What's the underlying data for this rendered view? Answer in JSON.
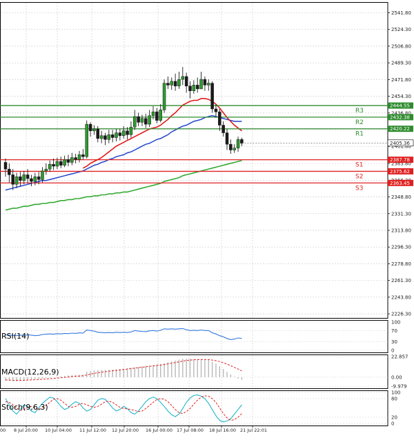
{
  "chart_data": [
    {
      "type": "candlestick",
      "title": "",
      "y_ticks": [
        "2541.80",
        "2524.30",
        "2506.80",
        "2489.30",
        "2471.80",
        "2454.30",
        "2436.80",
        "2419.30",
        "2401.80",
        "2383.80",
        "2366.30",
        "2348.80",
        "2331.30",
        "2313.80",
        "2296.30",
        "2278.80",
        "2261.30",
        "2243.80",
        "2226.30"
      ],
      "x_ticks": [
        "8 Jul 20:00",
        "10 Jul 04:00",
        "11 Jul 12:00",
        "12 Jul 20:00",
        "16 Jul 00:00",
        "17 Jul 08:00",
        "18 Jul 16:00",
        "21 Jul 22:01"
      ],
      "x_tick_first_partial": "00",
      "ylim": [
        2222,
        2553
      ],
      "grid": true,
      "candles": [
        [
          2385,
          2378,
          2389,
          2370
        ],
        [
          2378,
          2372,
          2384,
          2364
        ],
        [
          2372,
          2362,
          2378,
          2356
        ],
        [
          2362,
          2370,
          2374,
          2358
        ],
        [
          2370,
          2366,
          2375,
          2360
        ],
        [
          2366,
          2372,
          2376,
          2362
        ],
        [
          2372,
          2368,
          2378,
          2363
        ],
        [
          2368,
          2365,
          2372,
          2360
        ],
        [
          2365,
          2370,
          2374,
          2361
        ],
        [
          2370,
          2367,
          2375,
          2362
        ],
        [
          2367,
          2376,
          2380,
          2364
        ],
        [
          2376,
          2378,
          2384,
          2372
        ],
        [
          2378,
          2383,
          2387,
          2375
        ],
        [
          2383,
          2381,
          2389,
          2377
        ],
        [
          2381,
          2386,
          2390,
          2378
        ],
        [
          2386,
          2382,
          2391,
          2379
        ],
        [
          2382,
          2388,
          2392,
          2380
        ],
        [
          2388,
          2385,
          2393,
          2381
        ],
        [
          2385,
          2390,
          2395,
          2382
        ],
        [
          2390,
          2388,
          2394,
          2384
        ],
        [
          2388,
          2393,
          2397,
          2385
        ],
        [
          2393,
          2391,
          2399,
          2388
        ],
        [
          2391,
          2425,
          2429,
          2389
        ],
        [
          2425,
          2418,
          2427,
          2412
        ],
        [
          2418,
          2420,
          2424,
          2414
        ],
        [
          2420,
          2410,
          2423,
          2406
        ],
        [
          2410,
          2413,
          2418,
          2405
        ],
        [
          2413,
          2409,
          2416,
          2403
        ],
        [
          2409,
          2414,
          2419,
          2405
        ],
        [
          2414,
          2411,
          2419,
          2406
        ],
        [
          2411,
          2416,
          2420,
          2407
        ],
        [
          2416,
          2413,
          2420,
          2408
        ],
        [
          2413,
          2418,
          2423,
          2410
        ],
        [
          2418,
          2414,
          2422,
          2409
        ],
        [
          2414,
          2422,
          2428,
          2411
        ],
        [
          2422,
          2433,
          2440,
          2419
        ],
        [
          2433,
          2427,
          2437,
          2423
        ],
        [
          2427,
          2431,
          2435,
          2423
        ],
        [
          2431,
          2425,
          2436,
          2421
        ],
        [
          2425,
          2434,
          2440,
          2422
        ],
        [
          2434,
          2438,
          2444,
          2430
        ],
        [
          2438,
          2429,
          2442,
          2426
        ],
        [
          2429,
          2440,
          2446,
          2427
        ],
        [
          2440,
          2468,
          2472,
          2437
        ],
        [
          2468,
          2466,
          2475,
          2462
        ],
        [
          2466,
          2470,
          2474,
          2461
        ],
        [
          2470,
          2465,
          2478,
          2460
        ],
        [
          2465,
          2472,
          2480,
          2462
        ],
        [
          2472,
          2475,
          2485,
          2466
        ],
        [
          2475,
          2465,
          2479,
          2458
        ],
        [
          2465,
          2460,
          2470,
          2452
        ],
        [
          2460,
          2466,
          2471,
          2457
        ],
        [
          2466,
          2462,
          2474,
          2458
        ],
        [
          2462,
          2472,
          2480,
          2463
        ],
        [
          2472,
          2466,
          2475,
          2460
        ],
        [
          2466,
          2468,
          2472,
          2460
        ],
        [
          2468,
          2441,
          2470,
          2437
        ],
        [
          2441,
          2438,
          2446,
          2432
        ],
        [
          2438,
          2424,
          2441,
          2418
        ],
        [
          2424,
          2416,
          2428,
          2412
        ],
        [
          2416,
          2404,
          2420,
          2398
        ],
        [
          2404,
          2398,
          2409,
          2394
        ],
        [
          2398,
          2400,
          2404,
          2395
        ],
        [
          2400,
          2409,
          2412,
          2396
        ],
        [
          2409,
          2405,
          2411,
          2402
        ]
      ],
      "last_price": "2405.36",
      "levels": [
        {
          "name": "R3",
          "value": 2444.55,
          "label": "2444.55",
          "color": "#2e8b2e"
        },
        {
          "name": "R2",
          "value": 2432.38,
          "label": "2432.38",
          "color": "#2e8b2e"
        },
        {
          "name": "R1",
          "value": 2420.22,
          "label": "2420.22",
          "color": "#2e8b2e"
        },
        {
          "name": "S1",
          "value": 2387.78,
          "label": "2387.78",
          "color": "#e02020"
        },
        {
          "name": "S2",
          "value": 2375.62,
          "label": "2375.62",
          "color": "#e02020"
        },
        {
          "name": "S3",
          "value": 2363.45,
          "label": "2363.45",
          "color": "#e02020"
        }
      ],
      "ma_red": [
        null,
        null,
        null,
        null,
        null,
        null,
        null,
        null,
        null,
        null,
        null,
        null,
        null,
        null,
        null,
        null,
        null,
        null,
        null,
        null,
        null,
        2379,
        2381,
        2384,
        2386,
        2388,
        2390,
        2393,
        2396,
        2399,
        2402,
        2404,
        2406,
        2408,
        2410,
        2412,
        2414,
        2416,
        2418,
        2420,
        2421,
        2422,
        2424,
        2427,
        2430,
        2434,
        2437,
        2441,
        2445,
        2447,
        2449,
        2450,
        2450,
        2452,
        2452,
        2451,
        2449,
        2446,
        2442,
        2437,
        2432,
        2428,
        2424,
        2421,
        2418
      ],
      "ma_blue": [
        2356,
        2357,
        2358,
        2359,
        2360,
        2361,
        2362,
        2363,
        2364,
        2365,
        2366,
        2366,
        2367,
        2368,
        2369,
        2370,
        2371,
        2372,
        2373,
        2374,
        2375,
        2376,
        2378,
        2380,
        2382,
        2383,
        2385,
        2386,
        2388,
        2389,
        2391,
        2392,
        2393,
        2395,
        2396,
        2398,
        2400,
        2402,
        2404,
        2405,
        2407,
        2409,
        2410,
        2412,
        2414,
        2417,
        2419,
        2421,
        2423,
        2424,
        2426,
        2428,
        2429,
        2430,
        2432,
        2433,
        2434,
        2433,
        2432,
        2431,
        2430,
        2429,
        2428,
        2428,
        2428
      ],
      "ma_green": [
        2335,
        2336,
        2337,
        2337,
        2338,
        2339,
        2339,
        2340,
        2341,
        2341,
        2342,
        2342,
        2343,
        2343,
        2344,
        2345,
        2345,
        2346,
        2346,
        2347,
        2347,
        2348,
        2349,
        2349,
        2350,
        2350,
        2351,
        2351,
        2352,
        2352,
        2353,
        2353,
        2354,
        2354,
        2355,
        2356,
        2357,
        2358,
        2359,
        2360,
        2361,
        2362,
        2363,
        2365,
        2366,
        2367,
        2368,
        2369,
        2371,
        2372,
        2373,
        2374,
        2375,
        2376,
        2377,
        2378,
        2379,
        2380,
        2381,
        2382,
        2383,
        2384,
        2385,
        2386,
        2387
      ]
    },
    {
      "type": "line",
      "name": "RSI(14)",
      "ylim": [
        0,
        100
      ],
      "y_ticks": [
        "100",
        "70",
        "30",
        "0"
      ],
      "values": [
        55,
        54,
        53,
        52,
        54,
        53,
        55,
        54,
        52,
        53,
        56,
        57,
        58,
        57,
        59,
        58,
        60,
        59,
        61,
        60,
        62,
        61,
        72,
        70,
        68,
        64,
        63,
        62,
        63,
        62,
        64,
        63,
        64,
        63,
        65,
        70,
        68,
        67,
        66,
        69,
        70,
        68,
        71,
        76,
        75,
        76,
        75,
        76,
        77,
        73,
        70,
        71,
        70,
        72,
        70,
        70,
        62,
        58,
        52,
        48,
        42,
        38,
        40,
        44,
        42
      ]
    },
    {
      "type": "bar",
      "name": "MACD(12,26,9)",
      "ylim": [
        -9.979,
        22.857
      ],
      "y_ticks": [
        "22.857",
        "0.00",
        "-9.979"
      ],
      "values": [
        -4,
        -4,
        -4.5,
        -4.5,
        -4,
        -3.5,
        -3,
        -2.5,
        -2,
        -2,
        -1.5,
        -1,
        -0.5,
        0,
        0.5,
        1,
        1.5,
        2,
        2.2,
        2.4,
        2.6,
        2.8,
        6,
        7,
        7.5,
        7.8,
        8,
        8,
        8.2,
        8.5,
        8.8,
        9,
        9.5,
        10,
        10.5,
        11,
        11.5,
        12,
        12.5,
        13,
        13.5,
        14,
        14.5,
        15.5,
        16.5,
        17.5,
        18.5,
        19.5,
        20.5,
        20.5,
        20.5,
        20.2,
        20,
        19.8,
        19.5,
        19,
        17,
        15,
        12,
        9,
        6,
        3,
        0.5,
        -1.5,
        -3
      ],
      "signal": [
        -3,
        -3.2,
        -3.4,
        -3.5,
        -3.5,
        -3.4,
        -3.2,
        -3,
        -2.8,
        -2.6,
        -2.3,
        -2,
        -1.7,
        -1.3,
        -1,
        -0.6,
        -0.2,
        0.2,
        0.6,
        1,
        1.3,
        1.6,
        2.5,
        3.4,
        4.2,
        5,
        5.6,
        6.1,
        6.6,
        7.1,
        7.5,
        8,
        8.5,
        9,
        9.5,
        10,
        10.5,
        11,
        11.5,
        12,
        12.5,
        13,
        13.5,
        14,
        14.8,
        15.5,
        16.2,
        17,
        17.8,
        18.5,
        19,
        19.3,
        19.5,
        19.6,
        19.6,
        19.5,
        19,
        18.3,
        17.3,
        16,
        14.5,
        12.8,
        10.9,
        9,
        7
      ]
    },
    {
      "type": "line",
      "name": "Stoch(9,6,3)",
      "ylim": [
        0,
        100
      ],
      "y_ticks": [
        "100",
        "80",
        "20",
        "0"
      ],
      "k": [
        80,
        60,
        40,
        30,
        45,
        60,
        55,
        40,
        35,
        50,
        65,
        75,
        85,
        82,
        70,
        55,
        45,
        50,
        62,
        70,
        65,
        50,
        40,
        45,
        60,
        75,
        80,
        78,
        65,
        50,
        40,
        45,
        55,
        48,
        35,
        30,
        40,
        55,
        70,
        80,
        85,
        80,
        68,
        55,
        40,
        28,
        22,
        30,
        48,
        68,
        82,
        90,
        92,
        88,
        80,
        65,
        45,
        25,
        10,
        5,
        8,
        15,
        30,
        45,
        60
      ],
      "d": [
        70,
        68,
        60,
        50,
        42,
        45,
        52,
        55,
        50,
        45,
        50,
        58,
        68,
        78,
        80,
        75,
        65,
        55,
        52,
        55,
        62,
        65,
        60,
        55,
        52,
        55,
        62,
        70,
        72,
        68,
        60,
        52,
        48,
        47,
        45,
        42,
        38,
        40,
        48,
        58,
        68,
        77,
        80,
        78,
        70,
        58,
        45,
        35,
        32,
        38,
        48,
        62,
        75,
        85,
        89,
        88,
        80,
        68,
        50,
        32,
        18,
        10,
        12,
        20,
        32
      ]
    }
  ]
}
